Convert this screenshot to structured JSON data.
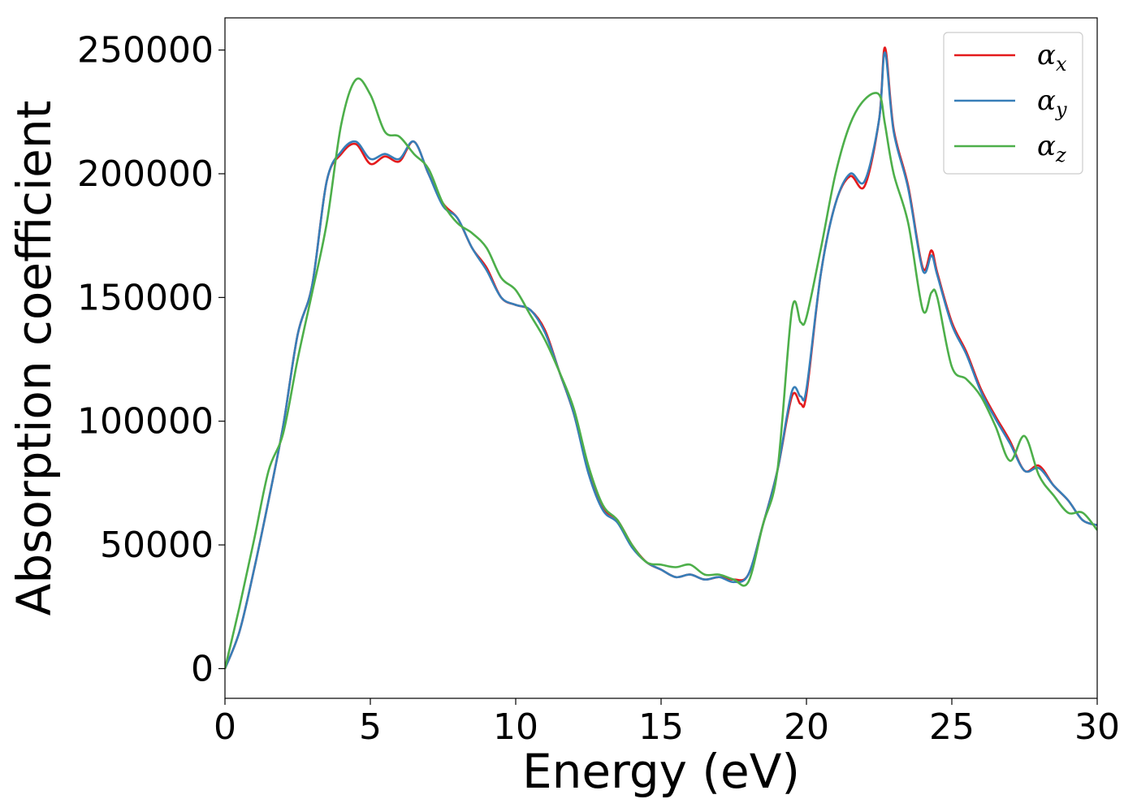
{
  "chart_data": {
    "type": "line",
    "xlabel": "Energy (eV)",
    "ylabel": "Absorption coefficient",
    "xlim": [
      0,
      30
    ],
    "ylim": [
      -12000,
      263000
    ],
    "xticks": [
      0,
      5,
      10,
      15,
      20,
      25,
      30
    ],
    "yticks": [
      0,
      50000,
      100000,
      150000,
      200000,
      250000
    ],
    "grid": false,
    "legend_position": "top-right",
    "series": [
      {
        "name": "α",
        "subscript": "x",
        "color": "#e41a1c",
        "x": [
          0,
          0.5,
          1,
          1.5,
          2,
          2.5,
          3,
          3.5,
          4,
          4.5,
          5,
          5.5,
          6,
          6.5,
          7,
          7.5,
          8,
          8.5,
          9,
          9.5,
          10,
          10.5,
          11,
          11.5,
          12,
          12.5,
          13,
          13.5,
          14,
          14.5,
          15,
          15.5,
          16,
          16.5,
          17,
          17.5,
          18,
          18.5,
          19,
          19.5,
          19.8,
          20,
          20.5,
          21,
          21.5,
          22,
          22.5,
          22.7,
          23,
          23.5,
          24,
          24.3,
          24.5,
          25,
          25.5,
          26,
          26.5,
          27,
          27.5,
          28,
          28.5,
          29,
          29.5,
          30
        ],
        "y": [
          0,
          15000,
          40000,
          68000,
          98000,
          135000,
          155000,
          197000,
          208000,
          212000,
          204000,
          207000,
          205000,
          213000,
          200000,
          188000,
          182000,
          170000,
          162000,
          150000,
          147000,
          145000,
          137000,
          120000,
          103000,
          80000,
          65000,
          60000,
          50000,
          43000,
          40000,
          37000,
          38000,
          36000,
          37000,
          36000,
          38000,
          58000,
          80000,
          110000,
          107000,
          111000,
          160000,
          188000,
          199000,
          195000,
          222000,
          251000,
          218000,
          195000,
          162000,
          169000,
          160000,
          140000,
          128000,
          113000,
          102000,
          92000,
          80000,
          82000,
          74000,
          68000,
          60000,
          58000
        ]
      },
      {
        "name": "α",
        "subscript": "y",
        "color": "#377eb8",
        "x": [
          0,
          0.5,
          1,
          1.5,
          2,
          2.5,
          3,
          3.5,
          4,
          4.5,
          5,
          5.5,
          6,
          6.5,
          7,
          7.5,
          8,
          8.5,
          9,
          9.5,
          10,
          10.5,
          11,
          11.5,
          12,
          12.5,
          13,
          13.5,
          14,
          14.5,
          15,
          15.5,
          16,
          16.5,
          17,
          17.5,
          18,
          18.5,
          19,
          19.5,
          19.8,
          20,
          20.5,
          21,
          21.5,
          22,
          22.5,
          22.7,
          23,
          23.5,
          24,
          24.3,
          24.5,
          25,
          25.5,
          26,
          26.5,
          27,
          27.5,
          28,
          28.5,
          29,
          29.5,
          30
        ],
        "y": [
          0,
          15000,
          40000,
          68000,
          98000,
          135000,
          155000,
          197000,
          209000,
          213000,
          206000,
          208000,
          206000,
          213000,
          200000,
          187000,
          182000,
          170000,
          161000,
          150000,
          147000,
          145000,
          136000,
          120000,
          103000,
          79000,
          64000,
          59000,
          49000,
          43000,
          40000,
          37000,
          38000,
          36000,
          37000,
          35000,
          38000,
          58000,
          80000,
          112000,
          110000,
          113000,
          160000,
          188000,
          200000,
          197000,
          222000,
          249000,
          217000,
          194000,
          161000,
          167000,
          159000,
          139000,
          127000,
          112000,
          101000,
          91000,
          80000,
          81000,
          74000,
          68000,
          60000,
          58000
        ]
      },
      {
        "name": "α",
        "subscript": "z",
        "color": "#4daf4a",
        "x": [
          0,
          0.5,
          1,
          1.5,
          2,
          2.5,
          3,
          3.5,
          4,
          4.5,
          5,
          5.5,
          6,
          6.5,
          7,
          7.5,
          8,
          8.5,
          9,
          9.5,
          10,
          10.5,
          11,
          11.5,
          12,
          12.5,
          13,
          13.5,
          14,
          14.5,
          15,
          15.5,
          16,
          16.5,
          17,
          17.5,
          18,
          18.5,
          19,
          19.5,
          19.8,
          20,
          20.5,
          21,
          21.5,
          22,
          22.5,
          22.7,
          23,
          23.5,
          24,
          24.3,
          24.5,
          25,
          25.5,
          26,
          26.5,
          27,
          27.5,
          28,
          28.5,
          29,
          29.5,
          30
        ],
        "y": [
          0,
          25000,
          52000,
          80000,
          95000,
          125000,
          152000,
          180000,
          220000,
          238000,
          232000,
          217000,
          215000,
          208000,
          202000,
          188000,
          180000,
          176000,
          170000,
          158000,
          153000,
          143000,
          133000,
          120000,
          105000,
          82000,
          66000,
          60000,
          50000,
          43000,
          42000,
          41000,
          42000,
          38000,
          38000,
          36000,
          35000,
          58000,
          80000,
          145000,
          140000,
          142000,
          170000,
          200000,
          220000,
          230000,
          232000,
          220000,
          200000,
          180000,
          145000,
          152000,
          150000,
          122000,
          117000,
          110000,
          98000,
          84000,
          94000,
          78000,
          70000,
          63000,
          63000,
          56000
        ]
      }
    ]
  }
}
